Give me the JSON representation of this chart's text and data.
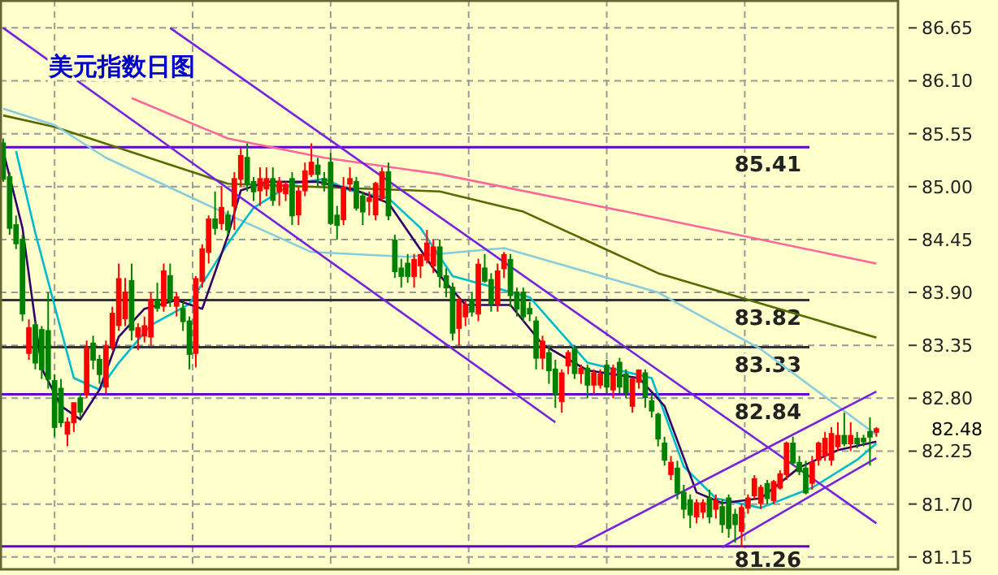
{
  "chart_data": {
    "type": "candlestick",
    "title": "美元指数日图",
    "colors": [
      "#008000",
      "#008000",
      "#008000",
      "#008000",
      "#ff0000",
      "#008000",
      "#008000",
      "#008000",
      "#008000",
      "#008000",
      "#ff0000",
      "#ff0000",
      "#008000",
      "#ff0000",
      "#008000",
      "#008000",
      "#ff0000",
      "#ff0000",
      "#ff0000",
      "#ff0000",
      "#008000",
      "#ff0000",
      "#ff0000",
      "#ff0000",
      "#008000",
      "#ff0000",
      "#008000",
      "#ff0000",
      "#008000",
      "#008000",
      "#ff0000",
      "#ff0000",
      "#ff0000",
      "#008000",
      "#ff0000",
      "#008000",
      "#ff0000",
      "#ff0000",
      "#008000",
      "#008000",
      "#ff0000",
      "#ff0000",
      "#008000",
      "#ff0000",
      "#ff0000",
      "#008000",
      "#ff0000",
      "#ff0000",
      "#ff0000",
      "#008000",
      "#008000",
      "#008000",
      "#008000",
      "#ff0000",
      "#ff0000",
      "#008000",
      "#008000",
      "#ff0000",
      "#ff0000",
      "#ff0000",
      "#008000",
      "#008000",
      "#008000",
      "#008000",
      "#ff0000",
      "#ff0000",
      "#ff0000",
      "#ff0000",
      "#008000",
      "#008000",
      "#008000",
      "#ff0000",
      "#ff0000",
      "#008000",
      "#ff0000",
      "#008000",
      "#008000",
      "#ff0000",
      "#ff0000",
      "#008000",
      "#008000",
      "#008000",
      "#008000",
      "#008000",
      "#ff0000",
      "#008000",
      "#008000",
      "#ff0000",
      "#ff0000",
      "#008000",
      "#ff0000",
      "#008000",
      "#ff0000",
      "#ff0000",
      "#008000",
      "#ff0000",
      "#008000",
      "#008000",
      "#ff0000",
      "#ff0000",
      "#008000",
      "#008000",
      "#008000",
      "#008000",
      "#ff0000",
      "#008000",
      "#008000",
      "#008000",
      "#ff0000",
      "#ff0000",
      "#008000",
      "#ff0000",
      "#008000",
      "#008000",
      "#008000",
      "#ff0000",
      "#ff0000",
      "#ff0000",
      "#ff0000",
      "#008000",
      "#ff0000",
      "#ff0000",
      "#ff0000",
      "#008000",
      "#008000",
      "#008000",
      "#ff0000",
      "#ff0000",
      "#ff0000",
      "#ff0000",
      "#ff0000",
      "#008000",
      "#ff0000",
      "#008000",
      "#008000",
      "#008000",
      "#ff0000"
    ],
    "ylim": [
      81.03,
      86.94
    ],
    "yticks": [
      {
        "value": 81.15,
        "label": "81.15"
      },
      {
        "value": 81.7,
        "label": "81.70"
      },
      {
        "value": 82.25,
        "label": "82.25"
      },
      {
        "value": 82.8,
        "label": "82.80"
      },
      {
        "value": 83.35,
        "label": "83.35"
      },
      {
        "value": 83.9,
        "label": "83.90"
      },
      {
        "value": 84.45,
        "label": "84.45"
      },
      {
        "value": 85,
        "label": "85.00"
      },
      {
        "value": 85.55,
        "label": "85.55"
      },
      {
        "value": 86.1,
        "label": "86.10"
      },
      {
        "value": 86.65,
        "label": "86.65"
      }
    ],
    "tick_labels": "y",
    "grid": true,
    "categories": [
      null,
      null,
      null,
      null,
      null,
      null,
      null,
      null,
      null,
      null,
      null,
      null,
      null,
      null,
      null,
      null,
      null,
      null,
      null,
      null,
      null,
      null,
      null,
      null,
      null,
      null,
      null,
      null,
      null,
      null,
      null,
      null,
      null,
      null,
      null,
      null,
      null,
      null,
      null,
      null,
      null,
      null,
      null,
      null,
      null,
      null,
      null,
      null,
      null,
      null,
      null,
      null,
      null,
      null,
      null,
      null,
      null,
      null,
      null,
      null,
      null,
      null,
      null,
      null,
      null,
      null,
      null,
      null,
      null,
      null,
      null,
      null,
      null,
      null,
      null,
      null,
      null,
      null,
      null,
      null,
      null,
      null,
      null,
      null,
      null,
      null,
      null,
      null,
      null,
      null,
      null,
      null,
      null,
      null,
      null,
      null,
      null,
      null,
      null,
      null,
      null,
      null,
      null,
      null,
      null,
      null,
      null,
      null,
      null,
      null,
      null,
      null,
      null,
      null,
      null,
      null,
      null,
      null,
      null,
      null,
      null,
      null,
      null,
      null,
      null,
      null,
      null,
      null,
      null,
      null,
      null,
      null,
      null,
      null,
      null,
      null,
      null
    ],
    "ohlc": [
      [
        85.45,
        85.5,
        85.05,
        85.08
      ],
      [
        85.1,
        85.15,
        84.5,
        84.57
      ],
      [
        84.6,
        84.7,
        84.35,
        84.41
      ],
      [
        84.45,
        84.5,
        83.6,
        83.68
      ],
      [
        83.27,
        83.62,
        83.2,
        83.53
      ],
      [
        83.56,
        83.6,
        83.1,
        83.17
      ],
      [
        83.51,
        83.55,
        83.0,
        83.1
      ],
      [
        83.5,
        83.9,
        82.9,
        83.0
      ],
      [
        82.98,
        83.05,
        82.4,
        82.5
      ],
      [
        82.9,
        83.0,
        82.5,
        82.55
      ],
      [
        82.43,
        82.6,
        82.3,
        82.55
      ],
      [
        82.55,
        82.75,
        82.45,
        82.75
      ],
      [
        82.8,
        82.85,
        82.6,
        82.66
      ],
      [
        82.84,
        83.4,
        82.8,
        83.32
      ],
      [
        83.37,
        83.45,
        83.1,
        83.2
      ],
      [
        83.2,
        83.25,
        82.95,
        83.05
      ],
      [
        82.92,
        83.4,
        82.85,
        83.34
      ],
      [
        83.34,
        83.75,
        83.3,
        83.68
      ],
      [
        83.56,
        84.2,
        83.5,
        84.04
      ],
      [
        83.63,
        84.05,
        83.55,
        83.9
      ],
      [
        84.02,
        84.2,
        83.4,
        83.51
      ],
      [
        83.44,
        83.58,
        83.3,
        83.53
      ],
      [
        83.45,
        83.65,
        83.38,
        83.55
      ],
      [
        83.44,
        83.9,
        83.35,
        83.82
      ],
      [
        83.82,
        84.0,
        83.7,
        83.74
      ],
      [
        83.76,
        84.2,
        83.7,
        84.12
      ],
      [
        84.07,
        84.2,
        83.75,
        83.82
      ],
      [
        83.76,
        83.9,
        83.65,
        83.85
      ],
      [
        83.73,
        83.8,
        83.5,
        83.6
      ],
      [
        83.6,
        83.65,
        83.1,
        83.26
      ],
      [
        83.27,
        84.07,
        83.12,
        84.04
      ],
      [
        84.02,
        84.4,
        83.95,
        84.35
      ],
      [
        84.32,
        84.7,
        84.2,
        84.66
      ],
      [
        84.66,
        84.95,
        84.5,
        84.57
      ],
      [
        84.62,
        85.0,
        84.55,
        84.78
      ],
      [
        84.7,
        84.75,
        84.5,
        84.55
      ],
      [
        84.8,
        85.15,
        84.55,
        85.08
      ],
      [
        85.08,
        85.4,
        85.0,
        85.32
      ],
      [
        85.3,
        85.45,
        84.95,
        85.03
      ],
      [
        85.05,
        85.1,
        84.85,
        84.95
      ],
      [
        84.96,
        85.2,
        84.8,
        85.08
      ],
      [
        84.98,
        85.2,
        84.9,
        85.08
      ],
      [
        85.08,
        85.2,
        84.8,
        84.86
      ],
      [
        84.95,
        85.1,
        84.8,
        85.05
      ],
      [
        84.93,
        85.05,
        84.85,
        85.02
      ],
      [
        85.08,
        85.15,
        84.6,
        84.7
      ],
      [
        84.71,
        85.0,
        84.6,
        84.95
      ],
      [
        84.96,
        85.25,
        84.9,
        85.16
      ],
      [
        85.13,
        85.45,
        85.1,
        85.25
      ],
      [
        85.22,
        85.3,
        85.0,
        85.13
      ],
      [
        85.08,
        85.15,
        84.95,
        85.02
      ],
      [
        85.25,
        85.35,
        84.6,
        84.62
      ],
      [
        84.7,
        84.8,
        84.45,
        84.6
      ],
      [
        84.66,
        85.1,
        84.6,
        84.99
      ],
      [
        85.03,
        85.2,
        84.95,
        85.08
      ],
      [
        85.05,
        85.1,
        84.75,
        84.78
      ],
      [
        84.9,
        84.95,
        84.6,
        84.74
      ],
      [
        84.85,
        84.95,
        84.7,
        84.88
      ],
      [
        84.71,
        85.05,
        84.65,
        85.03
      ],
      [
        84.88,
        85.2,
        84.85,
        85.15
      ],
      [
        85.15,
        85.25,
        84.65,
        84.7
      ],
      [
        84.44,
        84.5,
        84.05,
        84.12
      ],
      [
        84.15,
        84.25,
        83.95,
        84.07
      ],
      [
        84.2,
        84.3,
        84.0,
        84.07
      ],
      [
        84.07,
        84.3,
        83.95,
        84.24
      ],
      [
        84.18,
        84.3,
        84.05,
        84.29
      ],
      [
        84.24,
        84.55,
        84.2,
        84.41
      ],
      [
        84.18,
        84.45,
        84.1,
        84.37
      ],
      [
        84.37,
        84.45,
        83.95,
        84.07
      ],
      [
        84.07,
        84.15,
        83.85,
        83.95
      ],
      [
        83.95,
        84.0,
        83.4,
        83.48
      ],
      [
        83.53,
        83.85,
        83.35,
        83.82
      ],
      [
        83.65,
        83.82,
        83.55,
        83.77
      ],
      [
        83.82,
        83.9,
        83.65,
        83.7
      ],
      [
        83.68,
        84.25,
        83.6,
        84.19
      ],
      [
        84.15,
        84.3,
        84.0,
        84.02
      ],
      [
        84.03,
        84.1,
        83.7,
        83.78
      ],
      [
        83.78,
        84.2,
        83.7,
        84.12
      ],
      [
        84.15,
        84.32,
        84.05,
        84.29
      ],
      [
        84.24,
        84.3,
        83.75,
        83.87
      ],
      [
        83.9,
        83.95,
        83.65,
        83.73
      ],
      [
        83.9,
        83.95,
        83.6,
        83.65
      ],
      [
        83.73,
        83.8,
        83.6,
        83.68
      ],
      [
        83.6,
        83.65,
        83.1,
        83.22
      ],
      [
        83.22,
        83.45,
        83.1,
        83.39
      ],
      [
        83.27,
        83.35,
        82.95,
        83.09
      ],
      [
        83.1,
        83.2,
        82.7,
        82.84
      ],
      [
        82.77,
        83.1,
        82.65,
        83.06
      ],
      [
        83.14,
        83.3,
        83.05,
        83.27
      ],
      [
        83.31,
        83.35,
        83.0,
        83.06
      ],
      [
        83.06,
        83.15,
        82.95,
        83.11
      ],
      [
        83.11,
        83.15,
        82.8,
        82.94
      ],
      [
        82.94,
        83.1,
        82.85,
        83.06
      ],
      [
        82.94,
        83.1,
        82.9,
        83.05
      ],
      [
        83.14,
        83.2,
        82.85,
        82.92
      ],
      [
        82.89,
        83.15,
        82.8,
        83.11
      ],
      [
        83.17,
        83.22,
        82.85,
        82.92
      ],
      [
        83.05,
        83.1,
        82.8,
        82.86
      ],
      [
        82.72,
        83.0,
        82.65,
        83.0
      ],
      [
        82.97,
        83.1,
        82.9,
        83.09
      ],
      [
        83.06,
        83.1,
        82.7,
        82.81
      ],
      [
        82.77,
        82.85,
        82.6,
        82.67
      ],
      [
        82.63,
        82.65,
        82.3,
        82.38
      ],
      [
        82.33,
        82.4,
        82.1,
        82.16
      ],
      [
        82.01,
        82.2,
        81.95,
        82.13
      ],
      [
        82.07,
        82.15,
        81.75,
        81.82
      ],
      [
        81.82,
        81.9,
        81.55,
        81.65
      ],
      [
        81.74,
        81.8,
        81.45,
        81.59
      ],
      [
        81.57,
        81.75,
        81.5,
        81.71
      ],
      [
        81.62,
        81.75,
        81.55,
        81.71
      ],
      [
        81.76,
        81.85,
        81.5,
        81.57
      ],
      [
        81.65,
        81.8,
        81.55,
        81.74
      ],
      [
        81.67,
        81.75,
        81.4,
        81.49
      ],
      [
        81.76,
        81.8,
        81.35,
        81.45
      ],
      [
        81.59,
        81.65,
        81.3,
        81.49
      ],
      [
        81.42,
        81.7,
        81.26,
        81.66
      ],
      [
        81.66,
        81.8,
        81.6,
        81.76
      ],
      [
        81.79,
        82.0,
        81.75,
        81.96
      ],
      [
        81.71,
        81.9,
        81.65,
        81.87
      ],
      [
        81.91,
        81.95,
        81.7,
        81.76
      ],
      [
        81.74,
        81.95,
        81.7,
        81.93
      ],
      [
        81.87,
        82.05,
        81.85,
        82.01
      ],
      [
        82.01,
        82.35,
        81.95,
        82.33
      ],
      [
        82.33,
        82.4,
        82.1,
        82.13
      ],
      [
        82.13,
        82.2,
        82.0,
        82.04
      ],
      [
        82.07,
        82.15,
        81.8,
        81.82
      ],
      [
        81.92,
        82.2,
        81.85,
        82.13
      ],
      [
        82.16,
        82.35,
        82.1,
        82.33
      ],
      [
        82.21,
        82.45,
        82.15,
        82.38
      ],
      [
        82.16,
        82.5,
        82.1,
        82.43
      ],
      [
        82.3,
        82.55,
        82.25,
        82.41
      ],
      [
        82.41,
        82.65,
        82.3,
        82.33
      ],
      [
        82.33,
        82.55,
        82.25,
        82.41
      ],
      [
        82.38,
        82.45,
        82.28,
        82.33
      ],
      [
        82.38,
        82.42,
        82.3,
        82.35
      ],
      [
        82.45,
        82.6,
        82.1,
        82.4
      ],
      [
        82.45,
        82.5,
        82.4,
        82.48
      ]
    ],
    "series": [
      {
        "type": "line",
        "color": "#ff6699",
        "values": [
          null,
          null,
          null,
          null,
          null,
          null,
          null,
          null,
          null,
          null,
          null,
          null,
          null,
          null,
          null,
          null,
          null,
          null,
          null,
          null,
          85.92,
          null,
          null,
          null,
          null,
          null,
          null,
          null,
          null,
          null,
          null,
          null,
          null,
          null,
          null,
          85.5,
          null,
          null,
          null,
          null,
          null,
          null,
          null,
          null,
          null,
          null,
          null,
          null,
          null,
          null,
          85.3,
          null,
          null,
          null,
          null,
          null,
          null,
          null,
          null,
          null,
          null,
          null,
          null,
          null,
          null,
          null,
          null,
          null,
          85.13,
          null,
          null,
          null,
          null,
          null,
          null,
          null,
          null,
          null,
          null,
          null,
          null,
          null,
          null,
          null,
          null,
          null,
          null,
          null,
          null,
          null,
          null,
          null,
          null,
          null,
          null,
          null,
          null,
          84.74,
          null,
          null,
          null,
          null,
          null,
          null,
          null,
          null,
          null,
          null,
          null,
          null,
          null,
          null,
          null,
          null,
          null,
          null,
          null,
          null,
          null,
          null,
          null,
          null,
          null,
          null,
          null,
          null,
          null,
          null,
          null,
          null,
          null,
          null,
          null,
          null,
          null,
          null,
          84.2
        ]
      },
      {
        "type": "line",
        "color": "#556b00",
        "values": [
          85.74,
          null,
          null,
          null,
          null,
          null,
          null,
          null,
          85.62,
          null,
          null,
          null,
          null,
          null,
          null,
          null,
          null,
          null,
          null,
          null,
          null,
          null,
          null,
          null,
          null,
          null,
          null,
          null,
          null,
          null,
          null,
          null,
          null,
          null,
          null,
          85.03,
          null,
          null,
          null,
          null,
          null,
          null,
          null,
          null,
          null,
          null,
          null,
          null,
          null,
          null,
          null,
          null,
          null,
          null,
          null,
          null,
          null,
          null,
          null,
          null,
          null,
          null,
          null,
          null,
          null,
          null,
          null,
          null,
          84.95,
          null,
          null,
          null,
          null,
          null,
          null,
          null,
          null,
          null,
          null,
          null,
          null,
          84.74,
          null,
          null,
          null,
          null,
          null,
          null,
          null,
          null,
          null,
          null,
          null,
          null,
          null,
          null,
          null,
          null,
          null,
          null,
          null,
          null,
          84.1,
          null,
          null,
          null,
          null,
          null,
          null,
          null,
          null,
          null,
          null,
          null,
          null,
          null,
          null,
          null,
          null,
          null,
          null,
          null,
          null,
          null,
          null,
          null,
          null,
          null,
          null,
          null,
          null,
          null,
          null,
          null,
          null,
          null,
          83.43
        ]
      },
      {
        "type": "line",
        "color": "#88ccdd",
        "values": [
          85.81,
          null,
          null,
          null,
          null,
          null,
          null,
          null,
          85.64,
          null,
          null,
          null,
          null,
          null,
          null,
          null,
          85.3,
          null,
          null,
          null,
          null,
          null,
          null,
          null,
          null,
          null,
          null,
          null,
          null,
          null,
          null,
          null,
          null,
          null,
          null,
          84.71,
          null,
          null,
          null,
          null,
          null,
          null,
          null,
          null,
          null,
          null,
          null,
          null,
          84.32,
          null,
          null,
          null,
          null,
          null,
          null,
          null,
          null,
          null,
          null,
          null,
          null,
          null,
          null,
          84.27,
          null,
          null,
          null,
          null,
          null,
          null,
          null,
          null,
          null,
          null,
          null,
          null,
          null,
          null,
          84.36,
          null,
          null,
          null,
          null,
          null,
          null,
          null,
          null,
          null,
          null,
          null,
          null,
          null,
          null,
          null,
          null,
          null,
          null,
          null,
          null,
          null,
          null,
          null,
          83.9,
          null,
          null,
          null,
          null,
          null,
          null,
          null,
          null,
          null,
          null,
          null,
          null,
          null,
          null,
          null,
          83.31,
          null,
          null,
          null,
          null,
          null,
          null,
          null,
          null,
          null,
          null,
          null,
          null,
          null,
          null,
          null,
          null,
          null,
          82.42
        ]
      },
      {
        "type": "line",
        "color": "#00bbcc",
        "values": [
          null,
          null,
          85.37,
          null,
          null,
          84.52,
          null,
          null,
          null,
          83.51,
          null,
          83.01,
          null,
          null,
          null,
          82.89,
          null,
          null,
          83.17,
          null,
          null,
          null,
          null,
          83.56,
          null,
          null,
          null,
          null,
          null,
          83.78,
          null,
          null,
          null,
          null,
          null,
          84.41,
          null,
          null,
          null,
          84.78,
          null,
          null,
          null,
          null,
          null,
          85.03,
          null,
          null,
          null,
          null,
          85.08,
          null,
          null,
          null,
          84.96,
          null,
          null,
          null,
          null,
          null,
          84.88,
          null,
          null,
          null,
          null,
          84.57,
          null,
          null,
          null,
          null,
          84.07,
          null,
          null,
          null,
          null,
          null,
          null,
          null,
          null,
          null,
          null,
          null,
          83.85,
          null,
          null,
          null,
          null,
          null,
          null,
          null,
          null,
          83.17,
          null,
          null,
          null,
          null,
          null,
          null,
          null,
          null,
          null,
          83.01,
          null,
          null,
          null,
          null,
          82.09,
          null,
          null,
          null,
          null,
          81.76,
          null,
          null,
          null,
          null,
          null,
          null,
          81.66,
          null,
          null,
          null,
          null,
          null,
          null,
          null,
          81.87,
          null,
          null,
          null,
          null,
          null,
          null,
          82.16,
          null,
          null,
          82.33
        ]
      },
      {
        "type": "line",
        "color": "#330066",
        "values": [
          85.37,
          null,
          null,
          84.57,
          null,
          null,
          83.11,
          null,
          null,
          82.72,
          null,
          null,
          82.58,
          null,
          null,
          82.89,
          null,
          null,
          83.44,
          null,
          null,
          null,
          83.73,
          null,
          null,
          null,
          null,
          83.82,
          null,
          null,
          null,
          83.73,
          null,
          null,
          null,
          84.49,
          null,
          84.96,
          null,
          null,
          null,
          85.05,
          null,
          null,
          null,
          null,
          null,
          null,
          null,
          85.05,
          null,
          null,
          null,
          null,
          null,
          84.96,
          null,
          null,
          null,
          null,
          84.83,
          null,
          null,
          null,
          null,
          null,
          null,
          84.15,
          null,
          null,
          null,
          null,
          83.77,
          null,
          null,
          null,
          null,
          null,
          null,
          83.77,
          null,
          null,
          null,
          null,
          83.36,
          null,
          null,
          null,
          null,
          null,
          null,
          83.09,
          null,
          null,
          null,
          null,
          null,
          null,
          null,
          83.01,
          null,
          null,
          null,
          82.72,
          null,
          null,
          null,
          null,
          81.82,
          null,
          null,
          null,
          81.71,
          null,
          null,
          null,
          null,
          null,
          81.76,
          null,
          null,
          null,
          null,
          null,
          82.08,
          null,
          null,
          null,
          null,
          null,
          82.26,
          null,
          null,
          null,
          null,
          null,
          82.35
        ]
      },
      {
        "type": "line",
        "color": "#7722dd",
        "values": [
          null,
          null,
          null,
          null,
          null,
          null,
          null,
          null,
          null,
          null,
          null,
          null,
          null,
          null,
          null,
          null,
          null,
          null,
          null,
          null,
          null,
          null,
          null,
          null,
          null,
          null,
          86.65,
          null,
          null,
          null,
          null,
          null,
          null,
          null,
          null,
          null,
          null,
          null,
          null,
          null,
          null,
          null,
          null,
          null,
          null,
          null,
          null,
          null,
          null,
          null,
          null,
          null,
          null,
          null,
          null,
          null,
          null,
          null,
          null,
          null,
          null,
          null,
          null,
          null,
          null,
          null,
          null,
          null,
          null,
          null,
          null,
          null,
          null,
          null,
          null,
          null,
          null,
          null,
          null,
          null,
          null,
          null,
          null,
          null,
          null,
          null,
          null,
          null,
          null,
          null,
          null,
          null,
          null,
          null,
          null,
          null,
          null,
          null,
          null,
          null,
          null,
          null,
          null,
          null,
          null,
          null,
          null,
          null,
          null,
          null,
          null,
          null,
          null,
          null,
          null,
          null,
          null,
          null,
          null,
          null,
          null,
          null,
          null,
          null,
          null,
          null,
          null,
          null,
          null,
          null,
          null,
          null,
          null,
          null,
          null,
          null,
          81.5
        ]
      },
      {
        "type": "line",
        "color": "#7722dd",
        "values": [
          86.65,
          null,
          null,
          null,
          null,
          null,
          null,
          null,
          null,
          null,
          null,
          null,
          null,
          null,
          null,
          null,
          null,
          null,
          null,
          null,
          null,
          null,
          null,
          null,
          null,
          null,
          null,
          null,
          null,
          null,
          null,
          null,
          null,
          null,
          null,
          null,
          null,
          null,
          null,
          null,
          null,
          null,
          null,
          null,
          null,
          null,
          null,
          null,
          null,
          null,
          null,
          null,
          null,
          null,
          null,
          null,
          null,
          null,
          null,
          null,
          null,
          null,
          null,
          null,
          null,
          null,
          null,
          null,
          null,
          null,
          null,
          null,
          null,
          null,
          null,
          null,
          null,
          null,
          null,
          null,
          null,
          null,
          null,
          null,
          null,
          null,
          82.55,
          null,
          null,
          null,
          null,
          null,
          null,
          null,
          null,
          null,
          null,
          null,
          null,
          null,
          null,
          null,
          null,
          null,
          null,
          null,
          null,
          null,
          null,
          null,
          null,
          null,
          null,
          null,
          null,
          null,
          null,
          null,
          null,
          null,
          null,
          null,
          null,
          null,
          null,
          null,
          null,
          null,
          null,
          null,
          null,
          null,
          null,
          null,
          null,
          null,
          null
        ]
      },
      {
        "type": "line",
        "color": "#7722dd",
        "values": [
          null,
          null,
          null,
          null,
          null,
          null,
          null,
          null,
          null,
          null,
          null,
          null,
          null,
          null,
          null,
          null,
          null,
          null,
          null,
          null,
          null,
          null,
          null,
          null,
          null,
          null,
          null,
          null,
          null,
          null,
          null,
          null,
          null,
          null,
          null,
          null,
          null,
          null,
          null,
          null,
          null,
          null,
          null,
          null,
          null,
          null,
          null,
          null,
          null,
          null,
          null,
          null,
          null,
          null,
          null,
          null,
          null,
          null,
          null,
          null,
          null,
          null,
          null,
          null,
          null,
          null,
          null,
          null,
          null,
          null,
          null,
          null,
          null,
          null,
          null,
          null,
          null,
          null,
          null,
          null,
          null,
          null,
          null,
          null,
          null,
          null,
          null,
          null,
          null,
          81.25,
          null,
          null,
          null,
          null,
          null,
          null,
          null,
          null,
          null,
          null,
          null,
          null,
          null,
          null,
          null,
          null,
          null,
          null,
          null,
          null,
          null,
          null,
          null,
          null,
          null,
          null,
          null,
          null,
          null,
          null,
          null,
          null,
          null,
          null,
          null,
          null,
          null,
          null,
          null,
          null,
          null,
          null,
          null,
          null,
          null,
          null,
          82.87
        ]
      },
      {
        "type": "line",
        "color": "#7722dd",
        "values": [
          null,
          null,
          null,
          null,
          null,
          null,
          null,
          null,
          null,
          null,
          null,
          null,
          null,
          null,
          null,
          null,
          null,
          null,
          null,
          null,
          null,
          null,
          null,
          null,
          null,
          null,
          null,
          null,
          null,
          null,
          null,
          null,
          null,
          null,
          null,
          null,
          null,
          null,
          null,
          null,
          null,
          null,
          null,
          null,
          null,
          null,
          null,
          null,
          null,
          null,
          null,
          null,
          null,
          null,
          null,
          null,
          null,
          null,
          null,
          null,
          null,
          null,
          null,
          null,
          null,
          null,
          null,
          null,
          null,
          null,
          null,
          null,
          null,
          null,
          null,
          null,
          null,
          null,
          null,
          null,
          null,
          null,
          null,
          null,
          null,
          null,
          null,
          null,
          null,
          null,
          null,
          null,
          null,
          null,
          null,
          null,
          null,
          null,
          null,
          null,
          null,
          null,
          null,
          null,
          null,
          null,
          null,
          null,
          null,
          null,
          null,
          null,
          81.25,
          null,
          null,
          null,
          null,
          null,
          null,
          null,
          null,
          null,
          null,
          null,
          null,
          null,
          null,
          null,
          null,
          null,
          null,
          null,
          null,
          null,
          null,
          null,
          82.18
        ]
      }
    ],
    "ref_lines": [
      {
        "axis": "y",
        "value": 85.41,
        "label": "85.41",
        "color": "#6600cc"
      },
      {
        "axis": "y",
        "value": 83.82,
        "label": "83.82",
        "color": "#333333"
      },
      {
        "axis": "y",
        "value": 83.33,
        "label": "83.33",
        "color": "#333333"
      },
      {
        "axis": "y",
        "value": 82.84,
        "label": "82.84",
        "color": "#6600cc"
      },
      {
        "axis": "y",
        "value": 81.26,
        "label": "81.26",
        "color": "#6600cc"
      }
    ],
    "annotations": [
      "82.48"
    ]
  }
}
